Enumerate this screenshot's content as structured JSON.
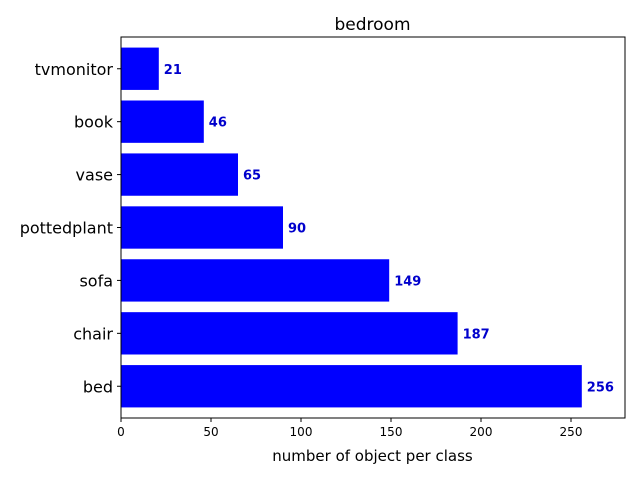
{
  "chart_data": {
    "type": "bar",
    "orientation": "horizontal",
    "title": "bedroom",
    "xlabel": "number of object per class",
    "ylabel": "",
    "categories": [
      "bed",
      "chair",
      "sofa",
      "pottedplant",
      "vase",
      "book",
      "tvmonitor"
    ],
    "values": [
      256,
      187,
      149,
      90,
      65,
      46,
      21
    ],
    "xlim": [
      0,
      280
    ],
    "xticks": [
      0,
      50,
      100,
      150,
      200,
      250
    ],
    "bar_color": "#0000ff",
    "label_color": "#0000cc",
    "grid": false
  }
}
